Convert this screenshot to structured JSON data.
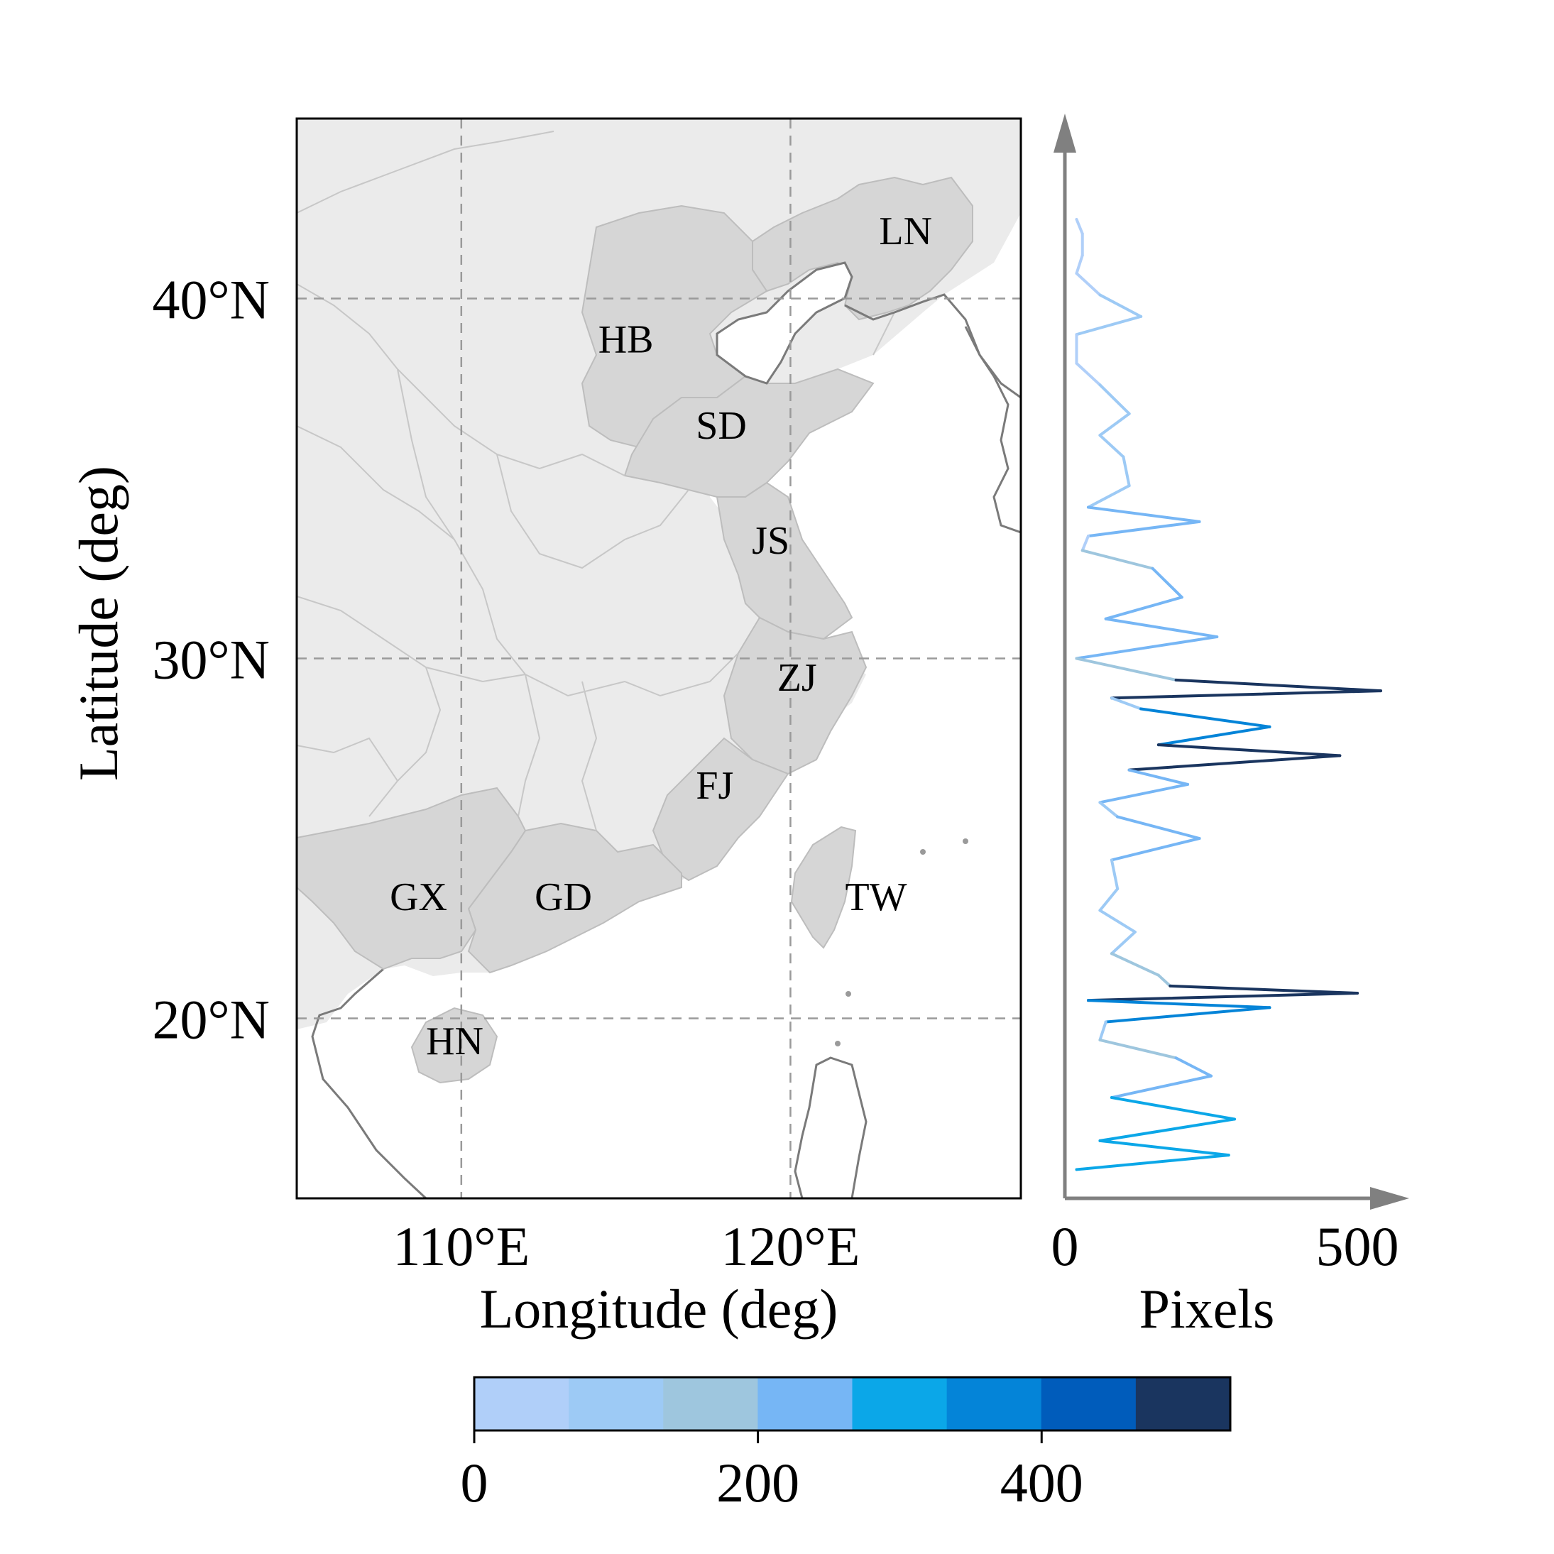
{
  "map": {
    "lat_ticks": [
      {
        "value": 40,
        "label": "40°N"
      },
      {
        "value": 30,
        "label": "30°N"
      },
      {
        "value": 20,
        "label": "20°N"
      }
    ],
    "lon_ticks": [
      {
        "value": 110,
        "label": "110°E"
      },
      {
        "value": 120,
        "label": "120°E"
      }
    ],
    "xlabel": "Longitude (deg)",
    "ylabel": "Latitude (deg)",
    "lon_range": [
      105,
      127
    ],
    "lat_range": [
      15,
      45
    ],
    "colors": {
      "land_background": "#ebebeb",
      "province_highlight": "#d6d6d6",
      "ocean": "#ffffff",
      "grid": "#9a9a9a"
    },
    "provinces": [
      {
        "code": "LN",
        "label": "LN",
        "lon": 123.5,
        "lat": 41.9
      },
      {
        "code": "HB",
        "label": "HB",
        "lon": 115.0,
        "lat": 38.9
      },
      {
        "code": "SD",
        "label": "SD",
        "lon": 117.9,
        "lat": 36.5
      },
      {
        "code": "JS",
        "label": "JS",
        "lon": 119.4,
        "lat": 33.3
      },
      {
        "code": "ZJ",
        "label": "ZJ",
        "lon": 120.2,
        "lat": 29.5
      },
      {
        "code": "FJ",
        "label": "FJ",
        "lon": 117.7,
        "lat": 26.5
      },
      {
        "code": "GX",
        "label": "GX",
        "lon": 108.7,
        "lat": 23.4
      },
      {
        "code": "GD",
        "label": "GD",
        "lon": 113.1,
        "lat": 23.4
      },
      {
        "code": "TW",
        "label": "TW",
        "lon": 122.6,
        "lat": 23.4
      },
      {
        "code": "HN",
        "label": "HN",
        "lon": 109.8,
        "lat": 19.4
      }
    ]
  },
  "chart_data": {
    "type": "line",
    "orientation": "horizontal-profile",
    "xlabel": "Pixels",
    "ylabel": "",
    "xlim": [
      0,
      540
    ],
    "ylim": [
      15,
      45
    ],
    "x_ticks": [
      {
        "value": 0,
        "label": "0"
      },
      {
        "value": 500,
        "label": "500"
      }
    ],
    "series": [
      {
        "lat": [
          42.2,
          41.8,
          41.2,
          40.7,
          40.1,
          39.5,
          39.0,
          38.2,
          37.6,
          36.8,
          36.2,
          35.6,
          34.8,
          34.2,
          33.8,
          33.4,
          33.0,
          32.5,
          31.7,
          31.1,
          30.6,
          30.0,
          29.4,
          29.1,
          28.9,
          28.6,
          28.1,
          27.6,
          27.3,
          26.9,
          26.5,
          26.0,
          25.6,
          25.0,
          24.4,
          23.6,
          23.0,
          22.4,
          21.8,
          21.2,
          20.9,
          20.7,
          20.5,
          20.3,
          19.9,
          19.4,
          18.9,
          18.4,
          17.8,
          17.2,
          16.6,
          16.2,
          15.8
        ],
        "pixels": [
          20,
          30,
          30,
          20,
          60,
          130,
          20,
          20,
          60,
          110,
          60,
          100,
          110,
          40,
          230,
          40,
          30,
          150,
          200,
          70,
          260,
          20,
          190,
          540,
          80,
          130,
          350,
          160,
          470,
          110,
          210,
          60,
          90,
          230,
          80,
          90,
          60,
          120,
          80,
          160,
          180,
          500,
          40,
          350,
          70,
          60,
          190,
          250,
          80,
          290,
          60,
          280,
          20
        ]
      }
    ],
    "colorbar": {
      "ticks": [
        {
          "value": 0,
          "label": "0"
        },
        {
          "value": 200,
          "label": "200"
        },
        {
          "value": 400,
          "label": "400"
        }
      ],
      "range": [
        0,
        533
      ],
      "colors": [
        "#b0cff9",
        "#9dcaf5",
        "#9ec6de",
        "#76b6f5",
        "#0ba7e8",
        "#0484d8",
        "#005cbb",
        "#1a355f"
      ]
    }
  }
}
